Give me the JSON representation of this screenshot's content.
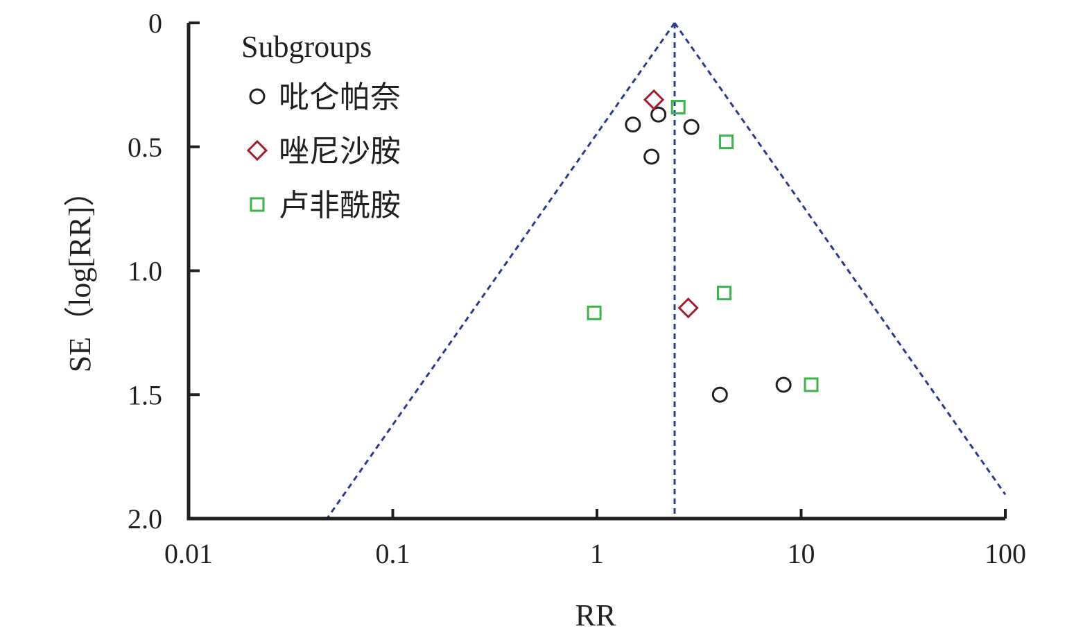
{
  "chart_data": {
    "type": "scatter",
    "subtype": "funnel-plot",
    "xlabel": "RR",
    "ylabel": "SE（log[RR]）",
    "x_scale": "log",
    "xlim": [
      0.01,
      100
    ],
    "ylim": [
      0,
      2.0
    ],
    "y_inverted": true,
    "x_ticks": [
      0.01,
      0.1,
      1,
      10,
      100
    ],
    "x_tick_labels": [
      "0.01",
      "0.1",
      "1",
      "10",
      "100"
    ],
    "y_ticks": [
      0,
      0.5,
      1.0,
      1.5,
      2.0
    ],
    "y_tick_labels": [
      "0",
      "0.5",
      "1.0",
      "1.5",
      "2.0"
    ],
    "pooled_rr": 2.4,
    "funnel_color": "#2b3990",
    "grid": false,
    "legend": {
      "title": "Subgroups",
      "position": "top-left"
    },
    "series": [
      {
        "name": "吡仑帕奈",
        "marker": "circle",
        "color": "#231f20",
        "points": [
          {
            "x": 1.5,
            "y": 0.41
          },
          {
            "x": 2.0,
            "y": 0.37
          },
          {
            "x": 2.9,
            "y": 0.42
          },
          {
            "x": 1.85,
            "y": 0.54
          },
          {
            "x": 4.0,
            "y": 1.5
          },
          {
            "x": 8.2,
            "y": 1.46
          }
        ]
      },
      {
        "name": "唑尼沙胺",
        "marker": "diamond",
        "color": "#a11d2b",
        "points": [
          {
            "x": 1.9,
            "y": 0.31
          },
          {
            "x": 2.8,
            "y": 1.15
          }
        ]
      },
      {
        "name": "卢非酰胺",
        "marker": "square",
        "color": "#39b54a",
        "points": [
          {
            "x": 2.5,
            "y": 0.34
          },
          {
            "x": 4.3,
            "y": 0.48
          },
          {
            "x": 4.2,
            "y": 1.09
          },
          {
            "x": 0.97,
            "y": 1.17
          },
          {
            "x": 11.2,
            "y": 1.46
          }
        ]
      }
    ]
  }
}
